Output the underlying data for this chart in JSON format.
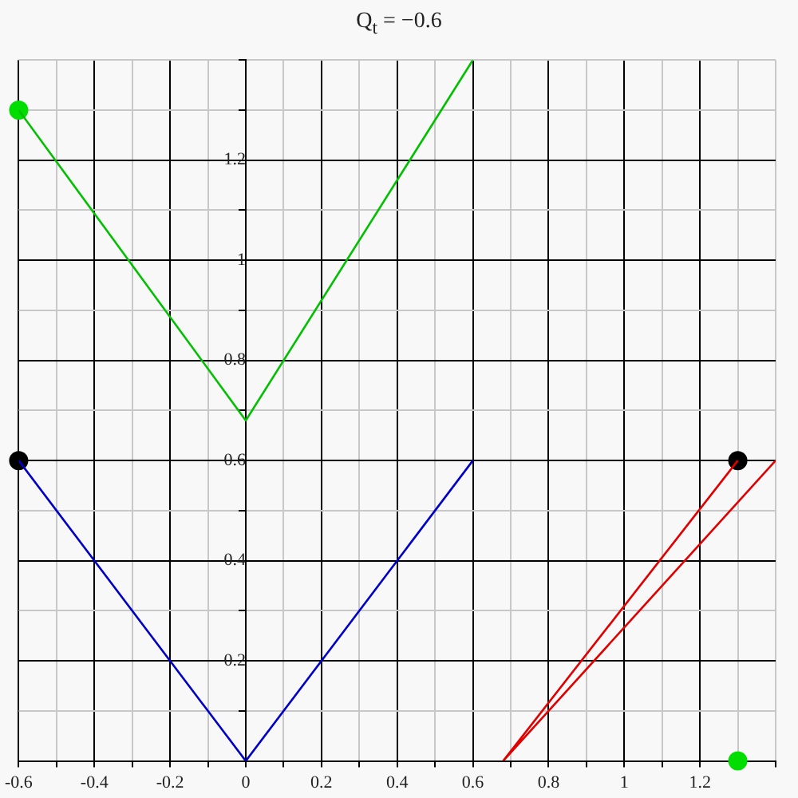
{
  "chart_data": {
    "type": "line",
    "title": "Q$_{t}$ = −0.6",
    "series": [
      {
        "color": "#00c000",
        "x": [
          -0.6,
          0,
          0.6
        ],
        "values": [
          1.3,
          0.68,
          1.4
        ]
      },
      {
        "color": "#0000c8",
        "x": [
          -0.6,
          0,
          0.6
        ],
        "values": [
          0.6,
          0,
          0.6
        ]
      },
      {
        "color": "#e00000",
        "x": [
          1.3,
          0.68,
          1.4
        ],
        "values": [
          0.6,
          0,
          0.6
        ]
      },
      {
        "type": "scatter",
        "marker": "circle",
        "color": "#00dd00",
        "x": [
          -0.6,
          1.3
        ],
        "values": [
          1.3,
          0
        ]
      },
      {
        "type": "scatter",
        "marker": "circle",
        "color": "#000000",
        "x": [
          -0.6,
          1.3
        ],
        "values": [
          0.6,
          0.6
        ]
      }
    ],
    "xlim": [
      -0.6,
      1.4
    ],
    "xticks": [
      -0.6,
      {
        "value": -0.5,
        "label": null
      },
      -0.4,
      {
        "value": -0.3,
        "label": null
      },
      -0.2,
      {
        "value": -0.1,
        "label": null
      },
      0,
      {
        "value": 0.1,
        "label": null
      },
      0.2,
      {
        "value": 0.3,
        "label": null
      },
      0.4,
      {
        "value": 0.5,
        "label": null
      },
      0.6,
      {
        "value": 0.7,
        "label": null
      },
      0.8,
      {
        "value": 0.9,
        "label": null
      },
      1,
      {
        "value": 1.1,
        "label": null
      },
      1.2,
      {
        "value": 1.3,
        "label": null
      },
      {
        "value": 1.4,
        "label": null
      }
    ],
    "ylim": [
      0,
      1.4
    ],
    "yticks": [
      {
        "value": 0,
        "label": null
      },
      {
        "value": 0.1,
        "label": null
      },
      0.2,
      {
        "value": 0.3,
        "label": null
      },
      0.4,
      {
        "value": 0.5,
        "label": null
      },
      0.6,
      {
        "value": 0.7,
        "label": null
      },
      0.8,
      {
        "value": 0.9,
        "label": null
      },
      1,
      {
        "value": 1.1,
        "label": null
      },
      1.2,
      {
        "value": 1.3,
        "label": null
      },
      {
        "value": 1.4,
        "label": null
      }
    ],
    "grid": true,
    "legend": false,
    "marker": "none",
    "line_style": "solid"
  }
}
